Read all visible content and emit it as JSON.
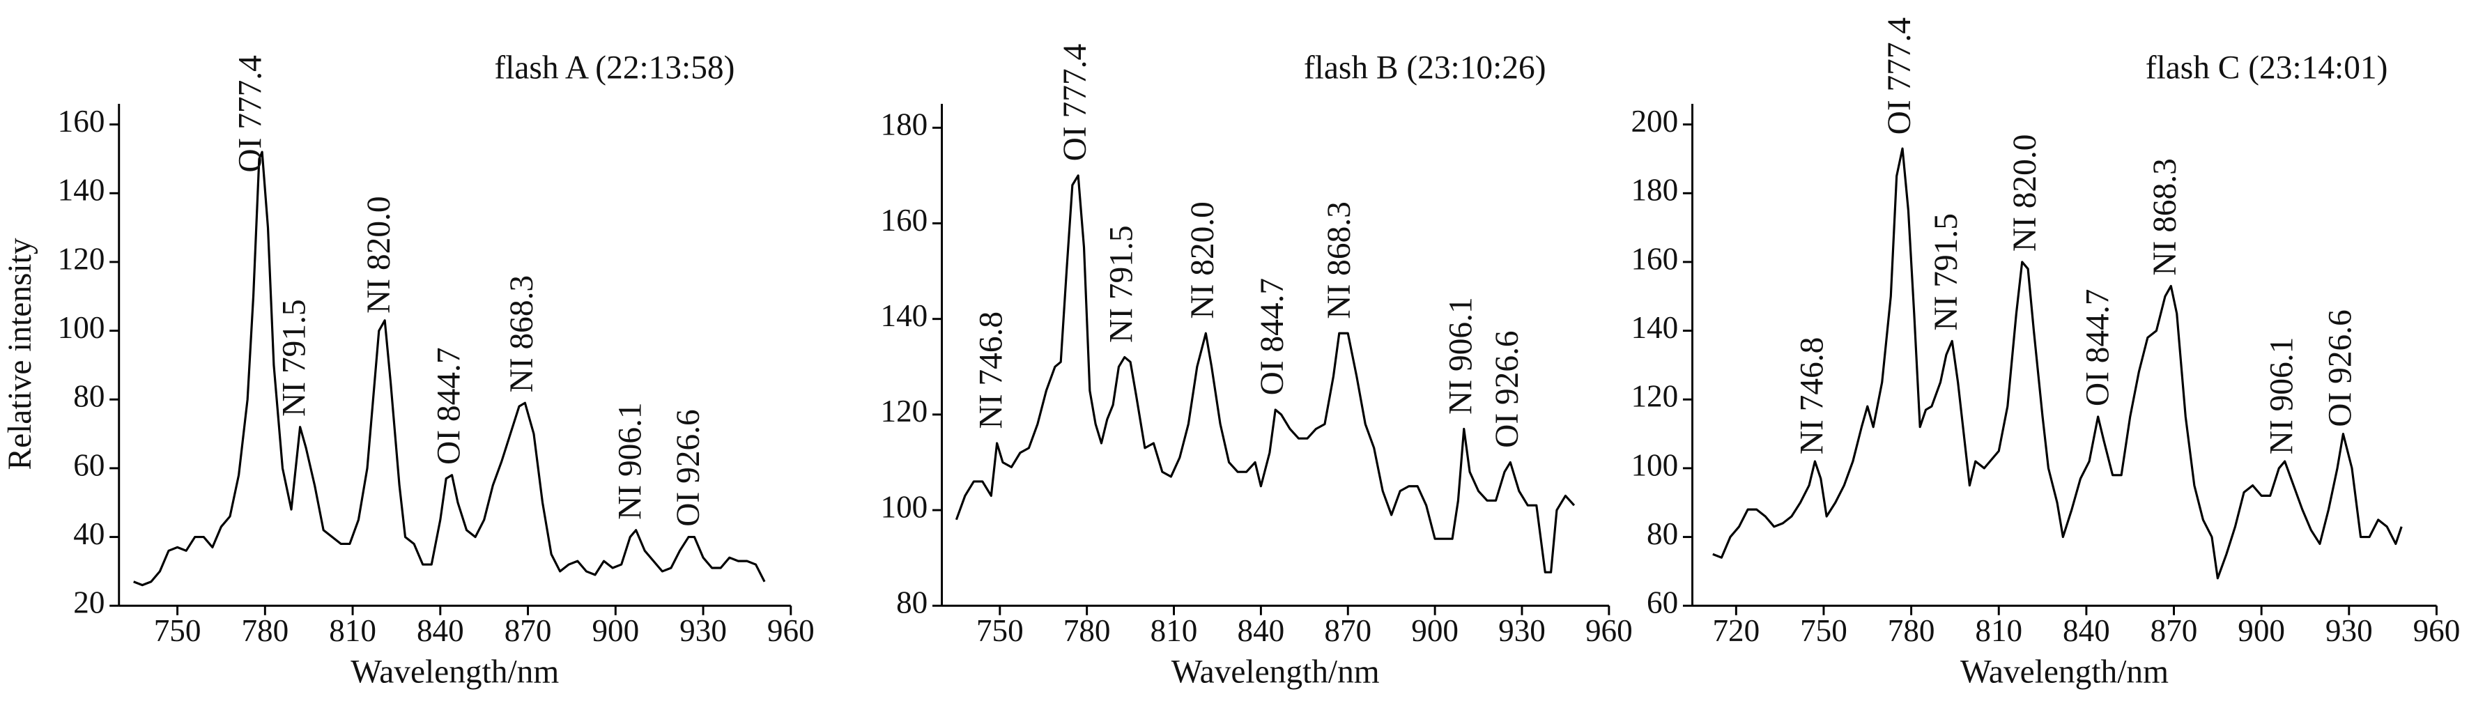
{
  "chart_data": [
    {
      "type": "line",
      "title": "flash A (22:13:58)",
      "xlabel": "Wavelength/nm",
      "ylabel": "Relative intensity",
      "color": "#000000",
      "xlim": [
        730,
        960
      ],
      "xticks": [
        750,
        780,
        810,
        840,
        870,
        900,
        930,
        960
      ],
      "ylim": [
        20,
        166
      ],
      "yticks": [
        20,
        40,
        60,
        80,
        100,
        120,
        140,
        160
      ],
      "annotations": [
        "OI 777.4",
        "NI 791.5",
        "NI 820.0",
        "OI 844.7",
        "NI 868.3",
        "NI 906.1",
        "OI 926.6"
      ],
      "x": [
        735,
        738,
        741,
        744,
        747,
        750,
        753,
        756,
        759,
        762,
        765,
        768,
        771,
        774,
        776,
        778,
        779,
        781,
        783,
        786,
        789,
        792,
        794,
        797,
        800,
        803,
        806,
        809,
        812,
        815,
        817,
        819,
        821,
        823,
        826,
        828,
        831,
        834,
        837,
        840,
        842,
        844,
        846,
        849,
        852,
        855,
        858,
        861,
        864,
        867,
        869,
        872,
        875,
        878,
        881,
        884,
        887,
        890,
        893,
        896,
        899,
        902,
        905,
        907,
        910,
        913,
        916,
        919,
        922,
        925,
        927,
        930,
        933,
        936,
        939,
        942,
        945,
        948,
        951
      ],
      "values": [
        27,
        26,
        27,
        30,
        36,
        37,
        36,
        40,
        40,
        37,
        43,
        46,
        58,
        80,
        110,
        150,
        152,
        130,
        90,
        60,
        48,
        72,
        66,
        55,
        42,
        40,
        38,
        38,
        45,
        60,
        80,
        100,
        103,
        85,
        55,
        40,
        38,
        32,
        32,
        45,
        57,
        58,
        50,
        42,
        40,
        45,
        55,
        62,
        70,
        78,
        79,
        70,
        50,
        35,
        30,
        32,
        33,
        30,
        29,
        33,
        31,
        32,
        40,
        42,
        36,
        33,
        30,
        31,
        36,
        40,
        40,
        34,
        31,
        31,
        34,
        33,
        33,
        32,
        27
      ]
    },
    {
      "type": "line",
      "title": "flash B (23:10:26)",
      "xlabel": "Wavelength/nm",
      "color": "#000000",
      "xlim": [
        730,
        960
      ],
      "xticks": [
        750,
        780,
        810,
        840,
        870,
        900,
        930,
        960
      ],
      "ylim": [
        80,
        185
      ],
      "yticks": [
        80,
        100,
        120,
        140,
        160,
        180
      ],
      "annotations": [
        "NI 746.8",
        "OI 777.4",
        "NI 791.5",
        "NI 820.0",
        "OI 844.7",
        "NI 868.3",
        "NI 906.1",
        "OI 926.6"
      ],
      "x": [
        735,
        738,
        741,
        744,
        747,
        749,
        751,
        754,
        757,
        760,
        763,
        766,
        769,
        771,
        773,
        775,
        777,
        779,
        781,
        783,
        785,
        787,
        789,
        791,
        793,
        795,
        797,
        800,
        803,
        806,
        809,
        812,
        815,
        818,
        821,
        823,
        826,
        829,
        832,
        835,
        838,
        840,
        843,
        845,
        847,
        850,
        853,
        856,
        859,
        862,
        865,
        867,
        870,
        873,
        876,
        879,
        882,
        885,
        888,
        891,
        894,
        897,
        900,
        903,
        906,
        908,
        910,
        912,
        915,
        918,
        921,
        924,
        926,
        929,
        932,
        935,
        938,
        940,
        942,
        945,
        948
      ],
      "values": [
        98,
        103,
        106,
        106,
        103,
        114,
        110,
        109,
        112,
        113,
        118,
        125,
        130,
        131,
        150,
        168,
        170,
        155,
        125,
        118,
        114,
        119,
        122,
        130,
        132,
        131,
        124,
        113,
        114,
        108,
        107,
        111,
        118,
        130,
        137,
        130,
        118,
        110,
        108,
        108,
        110,
        105,
        112,
        121,
        120,
        117,
        115,
        115,
        117,
        118,
        128,
        137,
        137,
        128,
        118,
        113,
        104,
        99,
        104,
        105,
        105,
        101,
        94,
        94,
        94,
        102,
        117,
        108,
        104,
        102,
        102,
        108,
        110,
        104,
        101,
        101,
        87,
        87,
        100,
        103,
        101
      ]
    },
    {
      "type": "line",
      "title": "flash C (23:14:01)",
      "xlabel": "Wavelength/nm",
      "color": "#000000",
      "xlim": [
        705,
        960
      ],
      "xticks": [
        720,
        750,
        780,
        810,
        840,
        870,
        900,
        930,
        960
      ],
      "ylim": [
        60,
        206
      ],
      "yticks": [
        60,
        80,
        100,
        120,
        140,
        160,
        180,
        200
      ],
      "annotations": [
        "NI 746.8",
        "OI 777.4",
        "NI 791.5",
        "NI 820.0",
        "OI 844.7",
        "NI 868.3",
        "NI 906.1",
        "OI 926.6"
      ],
      "x": [
        712,
        715,
        718,
        721,
        724,
        727,
        730,
        733,
        736,
        739,
        742,
        745,
        747,
        749,
        751,
        754,
        757,
        760,
        763,
        765,
        767,
        770,
        773,
        775,
        777,
        779,
        781,
        783,
        785,
        787,
        790,
        792,
        794,
        796,
        798,
        800,
        802,
        805,
        808,
        810,
        813,
        816,
        818,
        820,
        822,
        825,
        827,
        830,
        832,
        835,
        838,
        841,
        844,
        846,
        849,
        852,
        855,
        858,
        861,
        864,
        867,
        869,
        871,
        874,
        877,
        880,
        883,
        885,
        888,
        891,
        894,
        897,
        900,
        903,
        906,
        908,
        911,
        914,
        917,
        920,
        923,
        926,
        928,
        931,
        934,
        937,
        940,
        943,
        946,
        948
      ],
      "values": [
        75,
        74,
        80,
        83,
        88,
        88,
        86,
        83,
        84,
        86,
        90,
        95,
        102,
        97,
        86,
        90,
        95,
        102,
        112,
        118,
        112,
        125,
        150,
        185,
        193,
        175,
        145,
        112,
        117,
        118,
        125,
        133,
        137,
        125,
        110,
        95,
        102,
        100,
        103,
        105,
        118,
        145,
        160,
        158,
        140,
        115,
        100,
        90,
        80,
        88,
        97,
        102,
        115,
        108,
        98,
        98,
        115,
        128,
        138,
        140,
        150,
        153,
        145,
        115,
        95,
        85,
        80,
        68,
        75,
        83,
        93,
        95,
        92,
        92,
        100,
        102,
        95,
        88,
        82,
        78,
        88,
        100,
        110,
        100,
        80,
        80,
        85,
        83,
        78,
        83
      ]
    }
  ]
}
